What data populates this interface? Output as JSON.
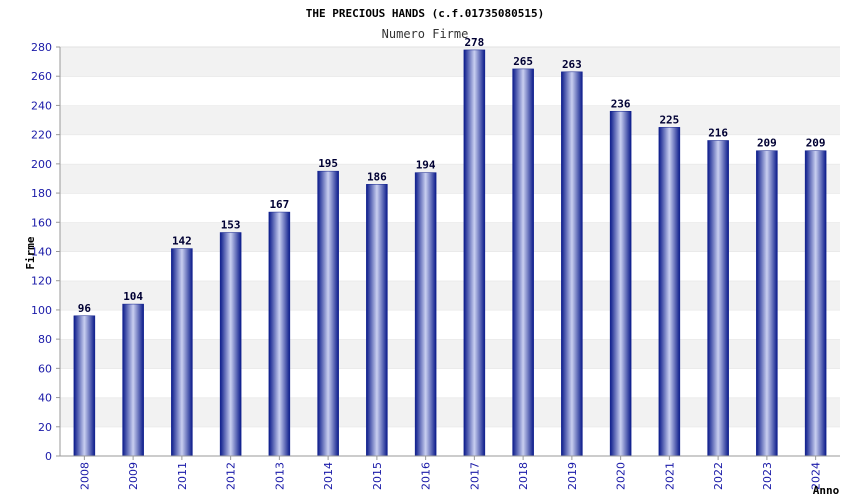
{
  "chart_data": {
    "type": "bar",
    "title": "THE PRECIOUS HANDS (c.f.01735080515)",
    "subtitle": "Numero Firme",
    "xlabel": "Anno",
    "ylabel": "Firme",
    "ylim": [
      0,
      280
    ],
    "ytick_step": 20,
    "grid": true,
    "categories": [
      "2008",
      "2009",
      "2011",
      "2012",
      "2013",
      "2014",
      "2015",
      "2016",
      "2017",
      "2018",
      "2019",
      "2020",
      "2021",
      "2022",
      "2023",
      "2024"
    ],
    "values": [
      96,
      104,
      142,
      153,
      167,
      195,
      186,
      194,
      278,
      265,
      263,
      236,
      225,
      216,
      209,
      209
    ],
    "colors": {
      "bar_dark": "#0a1a8a",
      "bar_light": "#c9cff0",
      "band": "#f2f2f2",
      "axis": "#999999"
    }
  }
}
